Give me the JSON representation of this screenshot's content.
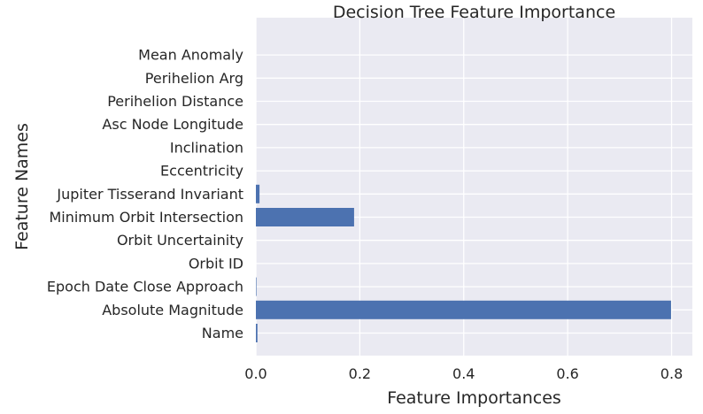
{
  "chart_data": {
    "type": "bar",
    "orientation": "horizontal",
    "title": "Decision Tree Feature Importance",
    "xlabel": "Feature Importances",
    "ylabel": "Feature Names",
    "categories": [
      "Name",
      "Absolute Magnitude",
      "Epoch Date Close Approach",
      "Orbit ID",
      "Orbit Uncertainity",
      "Minimum Orbit Intersection",
      "Jupiter Tisserand Invariant",
      "Eccentricity",
      "Inclination",
      "Asc Node Longitude",
      "Perihelion Distance",
      "Perihelion Arg",
      "Mean Anomaly"
    ],
    "values": [
      0.003,
      0.799,
      0.001,
      0.0,
      0.0,
      0.189,
      0.007,
      0.0,
      0.0,
      0.0,
      0.0,
      0.0,
      0.0
    ],
    "xlim": [
      0.0,
      0.84
    ],
    "xticks": [
      0.0,
      0.2,
      0.4,
      0.6,
      0.8
    ],
    "xtick_labels": [
      "0.0",
      "0.2",
      "0.4",
      "0.6",
      "0.8"
    ],
    "grid": true,
    "colors": {
      "bar": "#4c72b0",
      "background": "#eaeaf2",
      "grid": "#ffffff",
      "text": "#262626"
    }
  }
}
